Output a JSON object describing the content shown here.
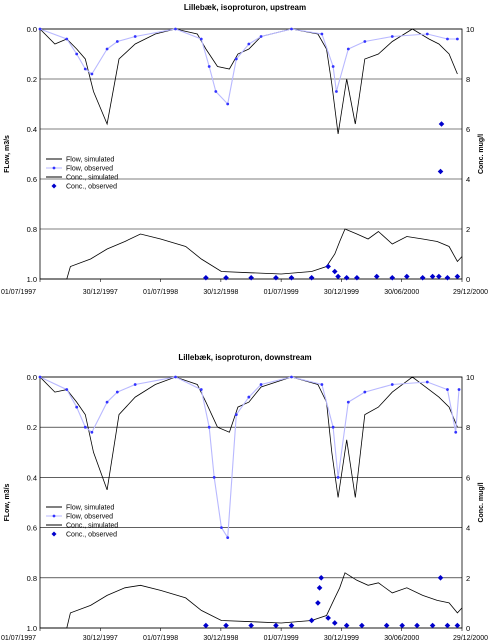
{
  "chart_data": [
    {
      "type": "line",
      "title": "Lillebæk, isoproturon, upstream",
      "ylabel": "FLow, m3/s",
      "y2label": "Conc. mug/l",
      "ylim": [
        0,
        1.0
      ],
      "y_inverted": true,
      "y2lim": [
        0,
        10
      ],
      "yticks": [
        "0.0",
        "0.2",
        "0.4",
        "0.6",
        "0.8",
        "1.0"
      ],
      "y2ticks": [
        "0",
        "2",
        "4",
        "6",
        "8",
        "10"
      ],
      "xticks": [
        "01/07/1997",
        "30/12/1997",
        "01/07/1998",
        "30/12/1998",
        "01/07/1999",
        "30/12/1999",
        "30/06/2000",
        "29/12/2000"
      ],
      "grid": true,
      "legend": [
        "Flow, simulated",
        "Flow, observed",
        "Conc., simulated",
        "Conc., observed"
      ],
      "legend_position": "center-left",
      "series": [
        {
          "name": "Flow, simulated",
          "axis": "left",
          "color": "#000000",
          "style": "line",
          "x": [
            "1997-07-01",
            "1997-08-15",
            "1997-09-20",
            "1997-10-20",
            "1997-11-15",
            "1997-12-10",
            "1998-01-20",
            "1998-02-25",
            "1998-04-15",
            "1998-06-15",
            "1998-08-15",
            "1998-10-20",
            "1998-11-15",
            "1998-12-20",
            "1999-01-25",
            "1999-02-20",
            "1999-03-25",
            "1999-05-01",
            "1999-08-01",
            "1999-10-20",
            "1999-11-15",
            "1999-12-01",
            "1999-12-20",
            "2000-01-15",
            "2000-02-10",
            "2000-03-10",
            "2000-04-20",
            "2000-06-01",
            "2000-08-01",
            "2000-09-20",
            "2000-10-20",
            "2000-11-20",
            "2000-12-15"
          ],
          "y": [
            0.0,
            0.06,
            0.04,
            0.08,
            0.12,
            0.25,
            0.38,
            0.12,
            0.06,
            0.02,
            0.0,
            0.02,
            0.08,
            0.15,
            0.16,
            0.1,
            0.08,
            0.03,
            0.0,
            0.02,
            0.08,
            0.22,
            0.42,
            0.2,
            0.38,
            0.12,
            0.1,
            0.05,
            0.0,
            0.04,
            0.06,
            0.1,
            0.18
          ]
        },
        {
          "name": "Flow, observed",
          "axis": "left",
          "color": "#3333ff",
          "style": "line-markers",
          "x": [
            "1997-07-01",
            "1997-09-20",
            "1997-10-20",
            "1997-11-15",
            "1997-12-05",
            "1998-01-20",
            "1998-02-20",
            "1998-04-15",
            "1998-08-15",
            "1998-11-01",
            "1998-11-25",
            "1998-12-15",
            "1999-01-20",
            "1999-02-15",
            "1999-03-25",
            "1999-05-01",
            "1999-08-01",
            "1999-11-01",
            "1999-12-05",
            "1999-12-15",
            "2000-01-20",
            "2000-03-10",
            "2000-06-01",
            "2000-09-15",
            "2000-11-15",
            "2000-12-15"
          ],
          "y": [
            0.0,
            0.04,
            0.1,
            0.16,
            0.18,
            0.08,
            0.05,
            0.03,
            0.0,
            0.04,
            0.15,
            0.25,
            0.3,
            0.12,
            0.06,
            0.03,
            0.0,
            0.02,
            0.15,
            0.25,
            0.08,
            0.05,
            0.03,
            0.02,
            0.04,
            0.04
          ]
        },
        {
          "name": "Conc., simulated",
          "axis": "right",
          "color": "#000000",
          "style": "line",
          "x": [
            "1997-07-01",
            "1997-09-20",
            "1997-10-01",
            "1997-12-01",
            "1998-01-20",
            "1998-03-15",
            "1998-05-01",
            "1998-07-01",
            "1998-09-15",
            "1998-11-01",
            "1999-01-01",
            "1999-04-01",
            "1999-07-01",
            "1999-10-01",
            "1999-11-15",
            "1999-12-10",
            "1999-12-25",
            "2000-01-10",
            "2000-02-15",
            "2000-03-20",
            "2000-04-20",
            "2000-06-01",
            "2000-07-15",
            "2000-09-01",
            "2000-10-15",
            "2000-11-20",
            "2000-12-15",
            "2000-12-29"
          ],
          "y": [
            0.0,
            0.0,
            0.5,
            0.8,
            1.2,
            1.5,
            1.8,
            1.6,
            1.3,
            0.8,
            0.3,
            0.25,
            0.2,
            0.3,
            0.5,
            1.0,
            1.5,
            2.0,
            1.8,
            1.6,
            1.9,
            1.4,
            1.7,
            1.6,
            1.5,
            1.3,
            0.7,
            0.9
          ]
        },
        {
          "name": "Conc., observed",
          "axis": "right",
          "color": "#0000cc",
          "style": "markers",
          "x": [
            "1998-11-15",
            "1999-01-15",
            "1999-04-01",
            "1999-06-15",
            "1999-08-01",
            "1999-10-01",
            "1999-11-20",
            "1999-12-10",
            "1999-12-20",
            "2000-01-15",
            "2000-02-15",
            "2000-04-15",
            "2000-06-01",
            "2000-07-15",
            "2000-09-01",
            "2000-10-01",
            "2000-10-20",
            "2000-10-25",
            "2000-10-28",
            "2000-11-15",
            "2000-12-15"
          ],
          "y": [
            0.05,
            0.05,
            0.05,
            0.05,
            0.05,
            0.05,
            0.5,
            0.3,
            0.1,
            0.05,
            0.05,
            0.1,
            0.05,
            0.1,
            0.05,
            0.1,
            0.1,
            4.3,
            6.2,
            0.05,
            0.1
          ]
        }
      ]
    },
    {
      "type": "line",
      "title": "Lillebæk, isoproturon, downstream",
      "ylabel": "FLow, m3/s",
      "y2label": "Conc. mug/l",
      "ylim": [
        0,
        1.0
      ],
      "y_inverted": true,
      "y2lim": [
        0,
        10
      ],
      "yticks": [
        "0.0",
        "0.2",
        "0.4",
        "0.6",
        "0.8",
        "1.0"
      ],
      "y2ticks": [
        "0",
        "2",
        "4",
        "6",
        "8",
        "10"
      ],
      "xticks": [
        "01/07/1997",
        "30/12/1997",
        "01/07/1998",
        "30/12/1998",
        "01/07/1999",
        "30/12/1999",
        "30/06/2000",
        "29/12/2000"
      ],
      "grid": true,
      "legend": [
        "Flow, simulated",
        "Flow, observed",
        "Conc., simulated",
        "Conc., observed"
      ],
      "legend_position": "center-left",
      "series": [
        {
          "name": "Flow, simulated",
          "axis": "left",
          "color": "#000000",
          "style": "line",
          "x": [
            "1997-07-01",
            "1997-08-15",
            "1997-09-20",
            "1997-10-20",
            "1997-11-15",
            "1997-12-10",
            "1998-01-20",
            "1998-02-25",
            "1998-04-15",
            "1998-06-15",
            "1998-08-15",
            "1998-10-20",
            "1998-11-15",
            "1998-12-20",
            "1999-01-25",
            "1999-02-20",
            "1999-03-25",
            "1999-05-01",
            "1999-08-01",
            "1999-10-20",
            "1999-11-15",
            "1999-12-01",
            "1999-12-20",
            "2000-01-15",
            "2000-02-10",
            "2000-03-10",
            "2000-04-20",
            "2000-06-01",
            "2000-08-01",
            "2000-09-20",
            "2000-10-20",
            "2000-11-20",
            "2000-12-15"
          ],
          "y": [
            0.0,
            0.06,
            0.05,
            0.1,
            0.15,
            0.3,
            0.45,
            0.15,
            0.08,
            0.03,
            0.0,
            0.03,
            0.1,
            0.2,
            0.22,
            0.12,
            0.1,
            0.04,
            0.0,
            0.03,
            0.1,
            0.3,
            0.48,
            0.25,
            0.48,
            0.15,
            0.12,
            0.06,
            0.0,
            0.05,
            0.08,
            0.12,
            0.2
          ]
        },
        {
          "name": "Flow, observed",
          "axis": "left",
          "color": "#3333ff",
          "style": "line-markers",
          "x": [
            "1997-07-01",
            "1997-09-20",
            "1997-10-20",
            "1997-11-15",
            "1997-12-05",
            "1998-01-20",
            "1998-02-20",
            "1998-04-15",
            "1998-08-15",
            "1998-11-01",
            "1998-11-25",
            "1998-12-10",
            "1999-01-01",
            "1999-01-20",
            "1999-02-15",
            "1999-03-25",
            "1999-05-01",
            "1999-08-01",
            "1999-11-01",
            "1999-12-05",
            "1999-12-20",
            "2000-01-20",
            "2000-03-10",
            "2000-06-01",
            "2000-09-15",
            "2000-11-15",
            "2000-12-10",
            "2000-12-20"
          ],
          "y": [
            0.0,
            0.05,
            0.12,
            0.2,
            0.22,
            0.1,
            0.06,
            0.03,
            0.0,
            0.05,
            0.2,
            0.4,
            0.6,
            0.64,
            0.15,
            0.08,
            0.03,
            0.0,
            0.03,
            0.2,
            0.4,
            0.1,
            0.06,
            0.03,
            0.02,
            0.05,
            0.22,
            0.05
          ]
        },
        {
          "name": "Conc., simulated",
          "axis": "right",
          "color": "#000000",
          "style": "line",
          "x": [
            "1997-07-01",
            "1997-09-20",
            "1997-10-01",
            "1997-12-01",
            "1998-01-20",
            "1998-03-15",
            "1998-05-01",
            "1998-07-01",
            "1998-09-15",
            "1998-11-01",
            "1999-01-01",
            "1999-04-01",
            "1999-07-01",
            "1999-10-01",
            "1999-11-15",
            "1999-12-10",
            "1999-12-25",
            "2000-01-10",
            "2000-02-15",
            "2000-03-20",
            "2000-04-20",
            "2000-06-01",
            "2000-07-15",
            "2000-09-01",
            "2000-10-15",
            "2000-11-20",
            "2000-12-15",
            "2000-12-29"
          ],
          "y": [
            0.0,
            0.0,
            0.6,
            0.9,
            1.3,
            1.6,
            1.7,
            1.5,
            1.2,
            0.7,
            0.3,
            0.25,
            0.2,
            0.3,
            0.5,
            1.2,
            1.6,
            2.2,
            1.9,
            1.7,
            1.8,
            1.4,
            1.6,
            1.3,
            1.1,
            1.0,
            0.6,
            0.8
          ]
        },
        {
          "name": "Conc., observed",
          "axis": "right",
          "color": "#0000cc",
          "style": "markers",
          "x": [
            "1998-11-15",
            "1999-01-15",
            "1999-04-01",
            "1999-06-15",
            "1999-08-01",
            "1999-10-01",
            "1999-10-20",
            "1999-10-25",
            "1999-10-30",
            "1999-11-20",
            "1999-12-10",
            "2000-01-15",
            "2000-03-01",
            "2000-05-15",
            "2000-07-01",
            "2000-08-15",
            "2000-10-01",
            "2000-10-25",
            "2000-11-15",
            "2000-12-15"
          ],
          "y": [
            0.1,
            0.1,
            0.1,
            0.1,
            0.1,
            0.3,
            1.0,
            1.6,
            2.0,
            0.4,
            0.2,
            0.1,
            0.1,
            0.1,
            0.1,
            0.1,
            0.1,
            2.0,
            0.1,
            0.1
          ]
        }
      ]
    }
  ]
}
